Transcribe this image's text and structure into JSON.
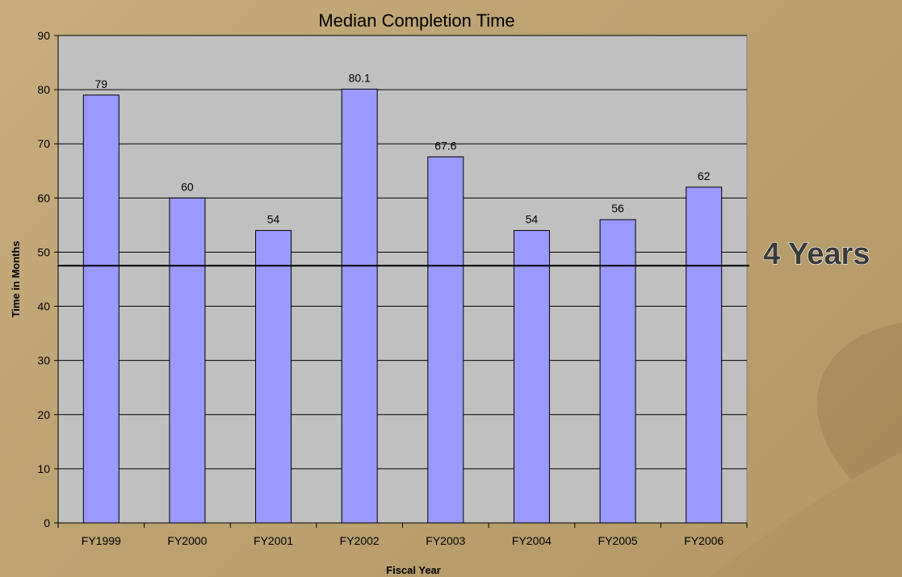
{
  "chart_data": {
    "type": "bar",
    "title": "Median Completion Time",
    "xlabel": "Fiscal Year",
    "ylabel": "Time in Months",
    "categories": [
      "FY1999",
      "FY2000",
      "FY2001",
      "FY2002",
      "FY2003",
      "FY2004",
      "FY2005",
      "FY2006"
    ],
    "values": [
      79,
      60,
      54,
      80.1,
      67.6,
      54,
      56,
      62
    ],
    "data_labels": [
      "79",
      "60",
      "54",
      "80.1",
      "67.6",
      "54",
      "56",
      "62"
    ],
    "ylim": [
      0,
      90
    ],
    "yticks": [
      0,
      10,
      20,
      30,
      40,
      50,
      60,
      70,
      80,
      90
    ],
    "grid": true,
    "legend": "none",
    "reference_line": {
      "label": "4 Years",
      "value": 47.5
    },
    "colors": {
      "bar_fill": "#9999ff",
      "bar_stroke": "#000000",
      "plot_background": "#c0c0c0",
      "gridline": "#000000",
      "page_background": "#c1a676"
    }
  }
}
